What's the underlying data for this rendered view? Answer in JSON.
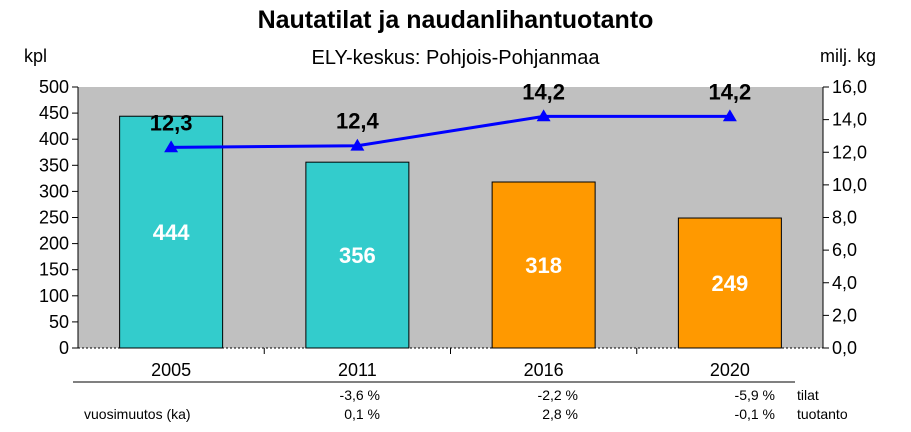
{
  "chart_data": {
    "type": "bar",
    "title": "Nautatilat ja naudanlihantuotanto",
    "subtitle": "ELY-keskus: Pohjois-Pohjanmaa",
    "ylabel_left": "kpl",
    "ylabel_right": "milj. kg",
    "categories": [
      "2005",
      "2011",
      "2016",
      "2020"
    ],
    "ylim_left": [
      0,
      500
    ],
    "yticks_left": [
      "0",
      "50",
      "100",
      "150",
      "200",
      "250",
      "300",
      "350",
      "400",
      "450",
      "500"
    ],
    "ylim_right": [
      0,
      16
    ],
    "yticks_right": [
      "0,0",
      "2,0",
      "4,0",
      "6,0",
      "8,0",
      "10,0",
      "12,0",
      "14,0",
      "16,0"
    ],
    "series": [
      {
        "type": "bar",
        "values": [
          444,
          356,
          318,
          249
        ],
        "colors": [
          "#33CCCC",
          "#33CCCC",
          "#FF9900",
          "#FF9900"
        ]
      },
      {
        "type": "line",
        "axis": "right",
        "values": [
          12.3,
          12.4,
          14.2,
          14.2
        ],
        "labels": [
          "12,3",
          "12,4",
          "14,2",
          "14,2"
        ],
        "color": "#0000FF"
      }
    ],
    "plot_background": "#C0C0C0",
    "changes_label": "vuosimuutos (ka)",
    "changes": {
      "tilat": [
        "-3,6 %",
        "-2,2 %",
        "-5,9 %"
      ],
      "tuotanto": [
        "0,1 %",
        "2,8 %",
        "-0,1 %"
      ],
      "row_labels": [
        "tilat",
        "tuotanto"
      ]
    }
  }
}
